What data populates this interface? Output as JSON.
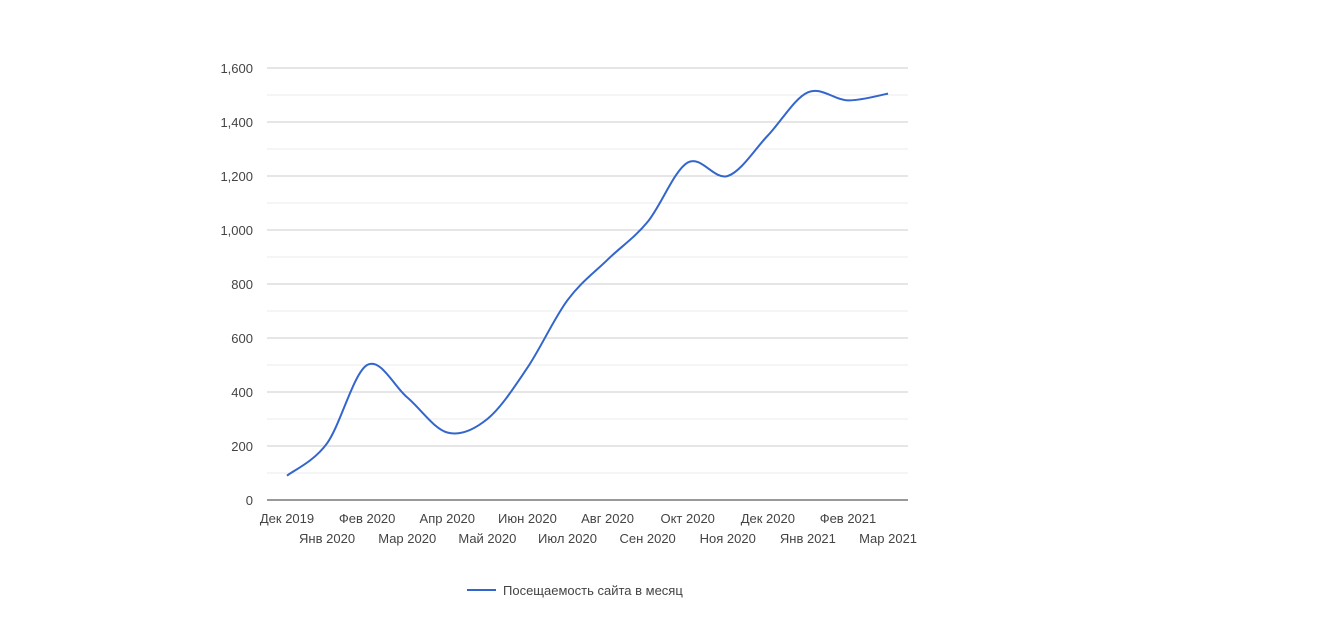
{
  "chart_data": {
    "type": "line",
    "title": "",
    "xlabel": "",
    "ylabel": "",
    "categories": [
      "Дек 2019",
      "Янв 2020",
      "Фев 2020",
      "Мар 2020",
      "Апр 2020",
      "Май 2020",
      "Июн 2020",
      "Июл 2020",
      "Авг 2020",
      "Сен 2020",
      "Окт 2020",
      "Ноя 2020",
      "Дек 2020",
      "Янв 2021",
      "Фев 2021",
      "Мар 2021"
    ],
    "series": [
      {
        "name": "Посещаемость сайта в месяц",
        "color": "#3366cc",
        "values": [
          90,
          210,
          500,
          380,
          250,
          300,
          490,
          740,
          890,
          1030,
          1250,
          1200,
          1350,
          1510,
          1480,
          1505
        ]
      }
    ],
    "ylim": [
      0,
      1600
    ],
    "yticks": [
      0,
      200,
      400,
      600,
      800,
      1000,
      1200,
      1400,
      1600
    ],
    "ytick_labels": [
      "0",
      "200",
      "400",
      "600",
      "800",
      "1,000",
      "1,200",
      "1,400",
      "1,600"
    ],
    "grid": true,
    "legend": "bottom"
  }
}
